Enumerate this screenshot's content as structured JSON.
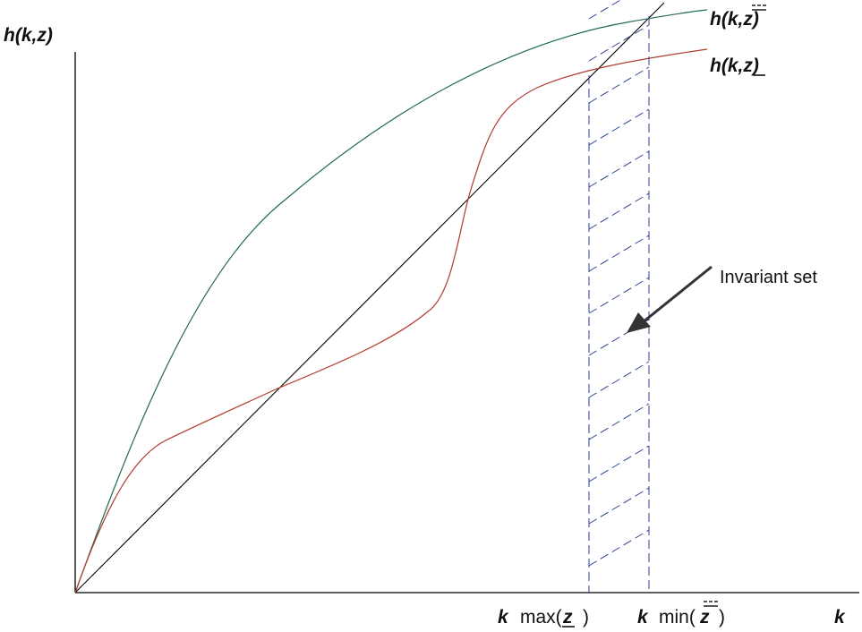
{
  "labels": {
    "y_axis": "h(k,z)",
    "x_axis": "k",
    "curve_upper": "h(k,z)",
    "curve_lower": "h(k,z)",
    "kmax_k": "k",
    "kmax_text": "max(",
    "kmax_z": "z",
    "kmax_close": ")",
    "kmin_k": "k",
    "kmin_text": "min(",
    "kmin_z": "z",
    "kmin_close": ")",
    "invariant_set": "Invariant set"
  },
  "colors": {
    "upper_curve": "#1f6b4e",
    "lower_curve": "#b03a2e",
    "diagonal": "#000000",
    "hatch": "#2b3f8f",
    "axes": "#000000",
    "arrow": "#333333"
  }
}
